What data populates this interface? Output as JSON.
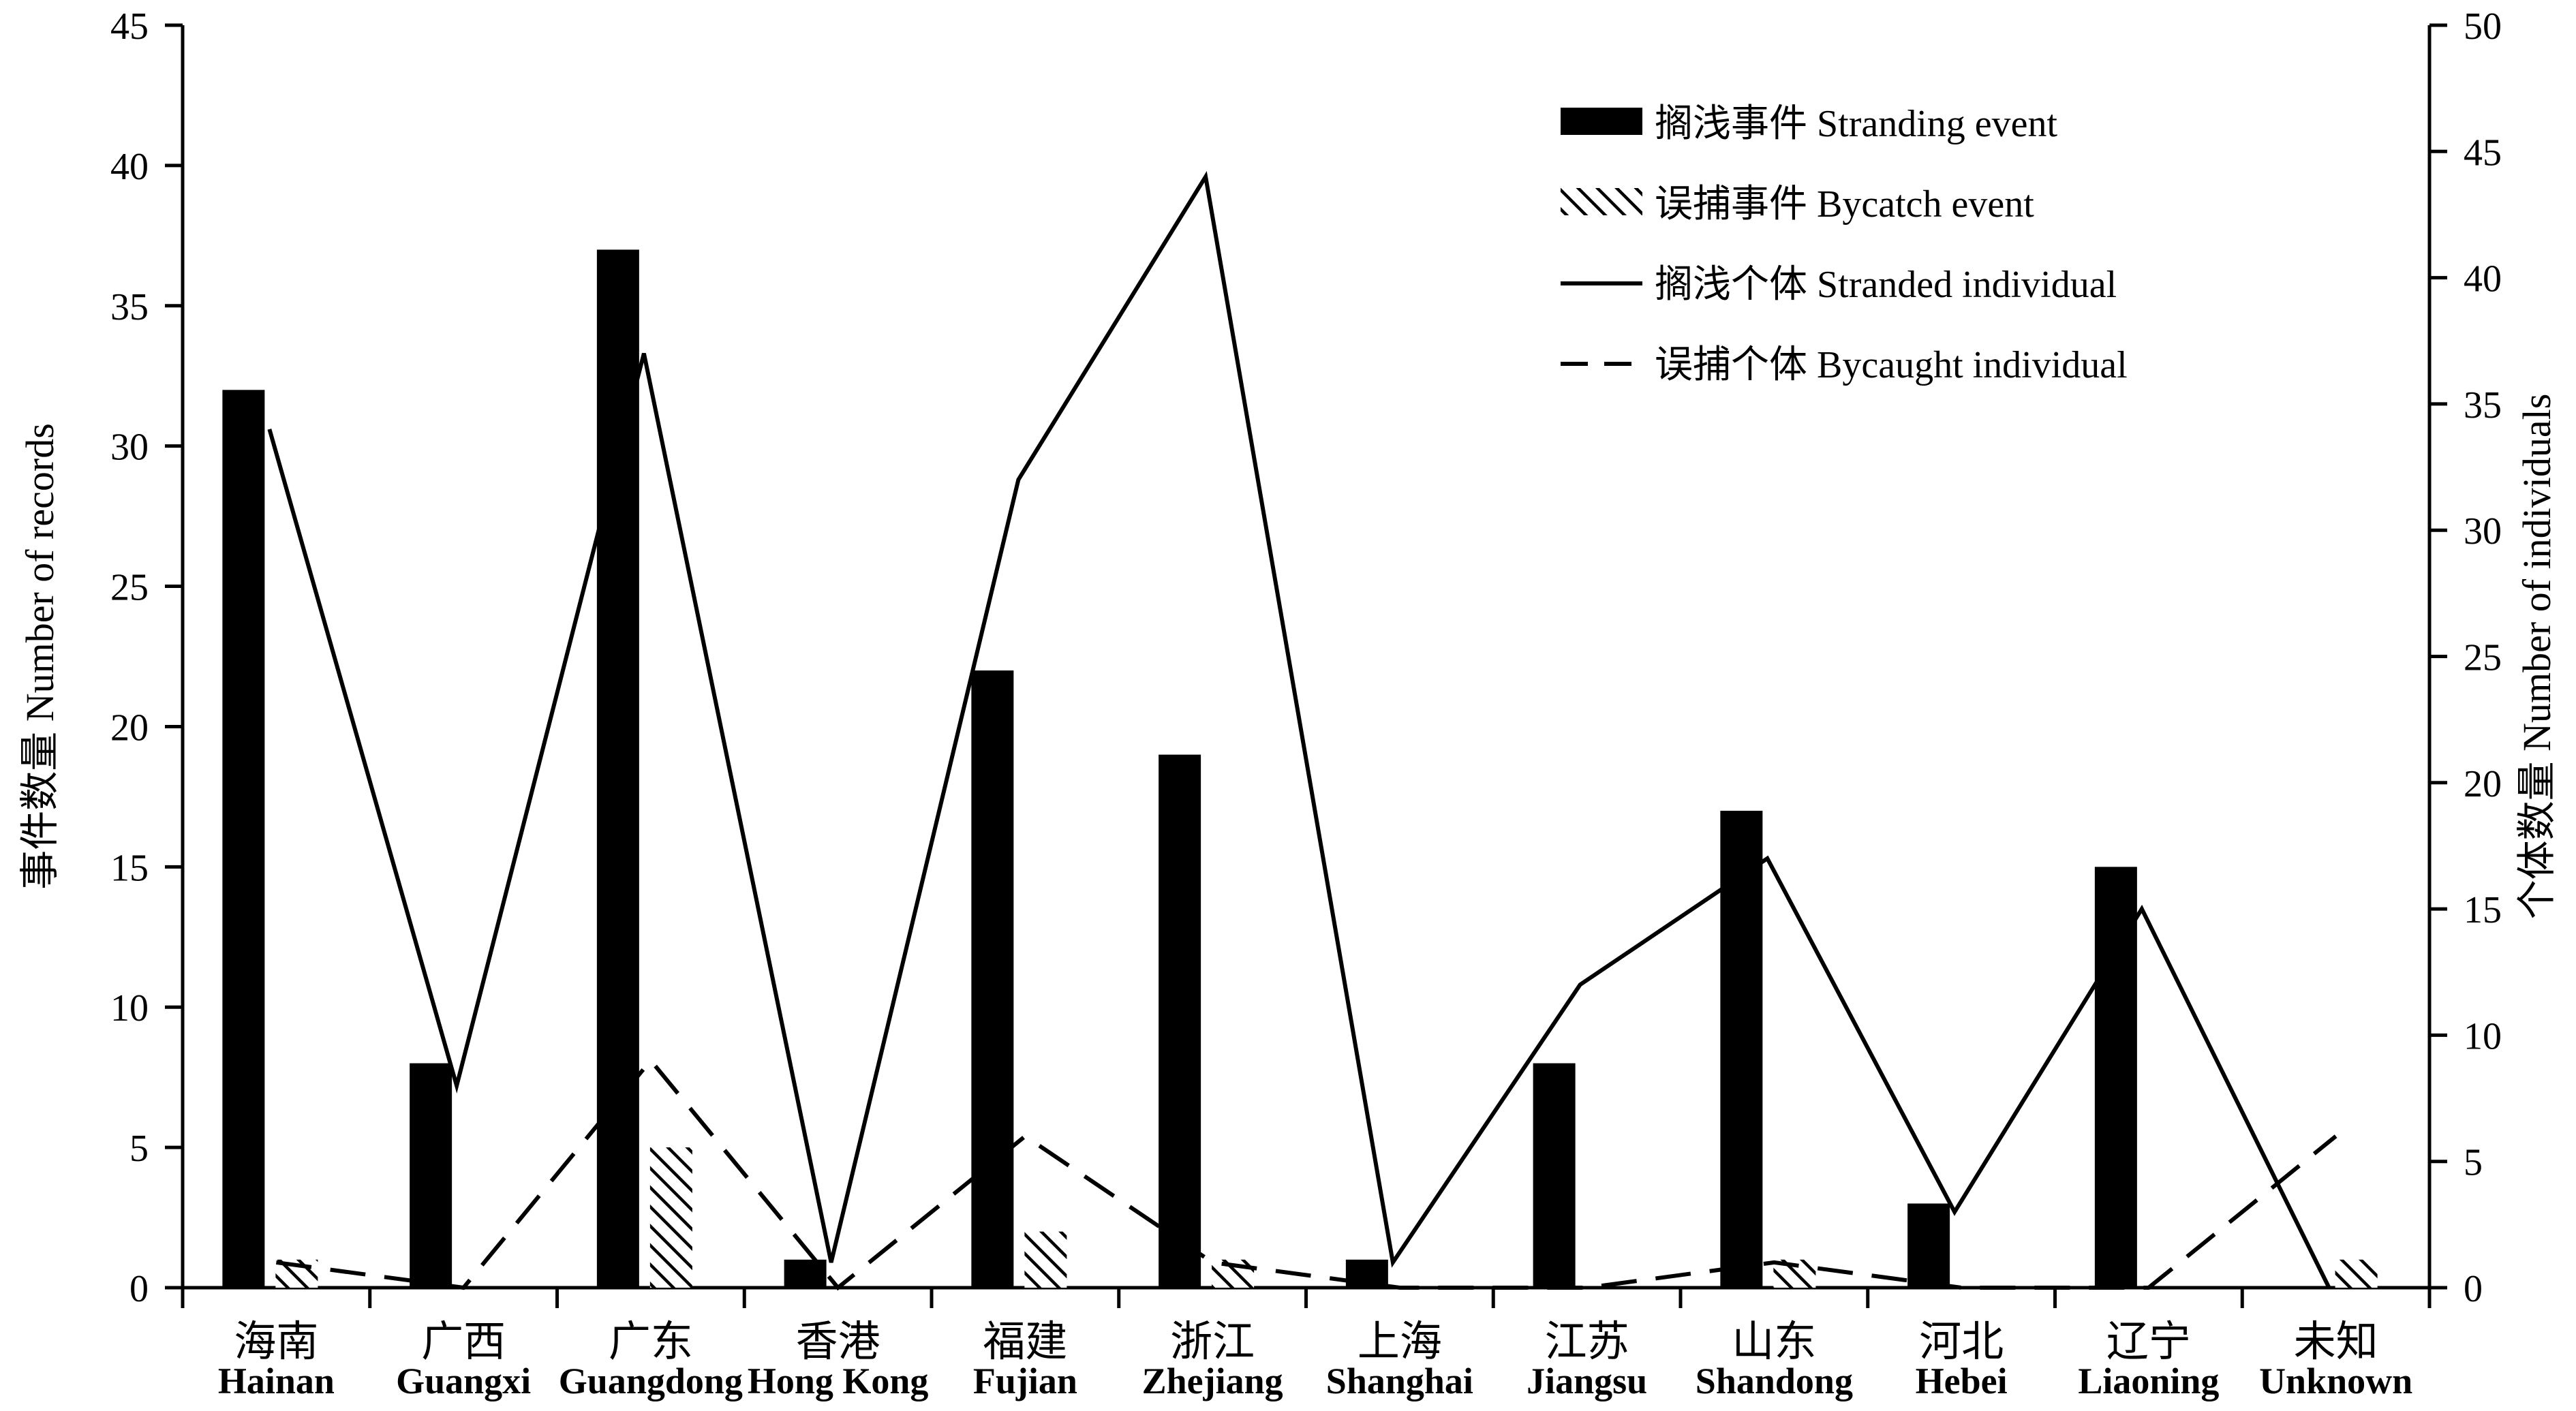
{
  "chart_data": {
    "type": "bar",
    "categories_zh": [
      "海南",
      "广西",
      "广东",
      "香港",
      "福建",
      "浙江",
      "上海",
      "江苏",
      "山东",
      "河北",
      "辽宁",
      "未知"
    ],
    "categories_en": [
      "Hainan",
      "Guangxi",
      "Guangdong",
      "Hong Kong",
      "Fujian",
      "Zhejiang",
      "Shanghai",
      "Jiangsu",
      "Shandong",
      "Hebei",
      "Liaoning",
      "Unknown"
    ],
    "series": [
      {
        "name": "搁浅事件 Stranding event",
        "kind": "bar",
        "pattern": "solid",
        "axis": "left",
        "values": [
          32,
          8,
          37,
          1,
          22,
          19,
          1,
          8,
          17,
          3,
          15,
          0
        ]
      },
      {
        "name": "误捕事件 Bycatch event",
        "kind": "bar",
        "pattern": "hatched",
        "axis": "left",
        "values": [
          1,
          0,
          5,
          0,
          2,
          1,
          0,
          0,
          1,
          0,
          0,
          1
        ]
      },
      {
        "name": "搁浅个体 Stranded individual",
        "kind": "line",
        "dash": "solid",
        "axis": "right",
        "values": [
          34,
          8,
          37,
          1,
          32,
          44,
          1,
          12,
          17,
          3,
          15,
          0
        ]
      },
      {
        "name": "误捕个体 Bycaught individual",
        "kind": "line",
        "dash": "dashed",
        "axis": "right",
        "values": [
          1,
          0,
          9,
          0,
          6,
          1,
          0,
          0,
          1,
          0,
          0,
          6
        ]
      }
    ],
    "ylabel_left": "事件数量 Number of records",
    "ylabel_right": "个体数量 Number of individuals",
    "ylim_left": [
      0,
      45
    ],
    "ylim_right": [
      0,
      50
    ],
    "yticks_left": [
      0,
      5,
      10,
      15,
      20,
      25,
      30,
      35,
      40,
      45
    ],
    "yticks_right": [
      0,
      5,
      10,
      15,
      20,
      25,
      30,
      35,
      40,
      45,
      50
    ],
    "grid": false,
    "legend_position": "top-right"
  }
}
